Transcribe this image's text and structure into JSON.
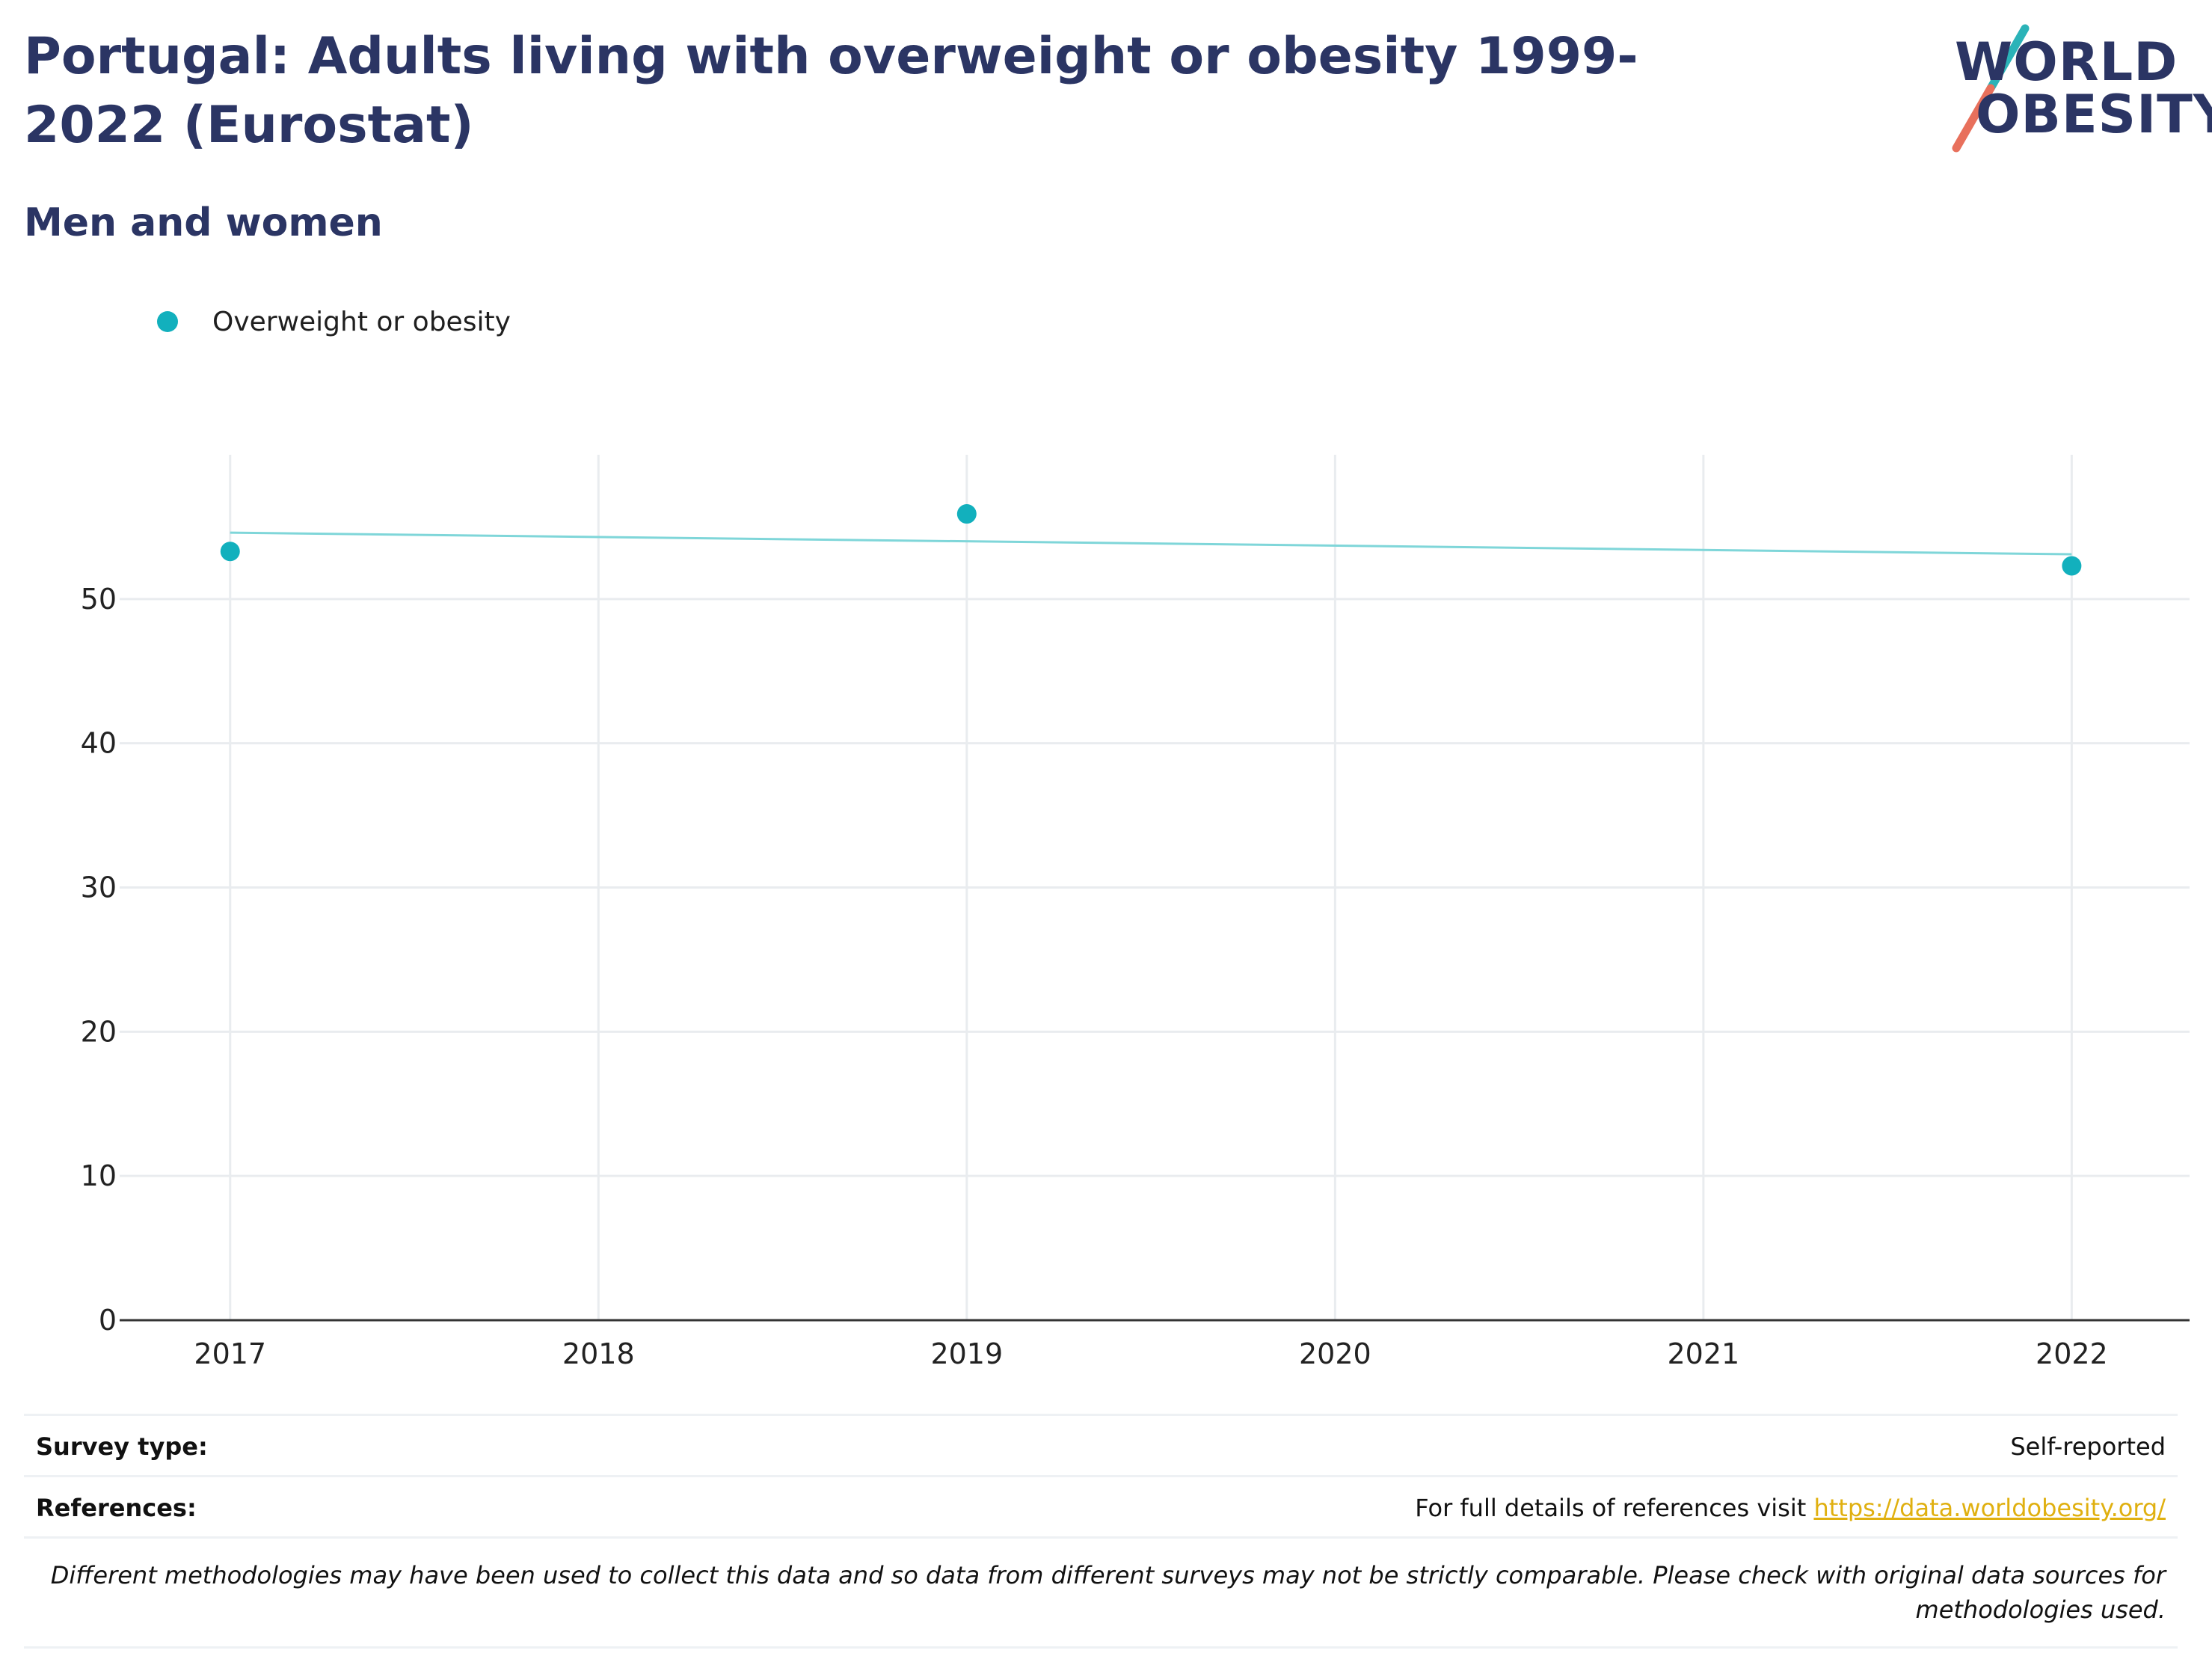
{
  "header": {
    "title": "Portugal: Adults living with overweight or obesity 1999-2022 (Eurostat)",
    "subtitle": "Men and women"
  },
  "logo": {
    "line1": "WORLD",
    "line2": "OBESITY",
    "accent_teal": "#2bb3b8",
    "accent_coral": "#e8705c"
  },
  "legend": {
    "items": [
      {
        "label": "Overweight or obesity",
        "color": "#12b0bd"
      }
    ]
  },
  "chart_data": {
    "type": "scatter",
    "title": "",
    "xlabel": "",
    "ylabel": "",
    "x_ticks": [
      "2017",
      "2018",
      "2019",
      "2020",
      "2021",
      "2022"
    ],
    "y_ticks": [
      "0",
      "10",
      "20",
      "30",
      "40",
      "50"
    ],
    "xlim": [
      2016.7,
      2022.32
    ],
    "ylim": [
      0,
      60
    ],
    "grid": true,
    "series": [
      {
        "name": "Overweight or obesity",
        "color": "#12b0bd",
        "x": [
          2017,
          2019,
          2022
        ],
        "y": [
          53.3,
          55.9,
          52.3
        ]
      }
    ],
    "trendline": {
      "color": "#7fd6d9",
      "x": [
        2017,
        2022
      ],
      "y": [
        54.6,
        53.1
      ]
    }
  },
  "footer": {
    "survey_type_label": "Survey type:",
    "survey_type_value": "Self-reported",
    "references_label": "References:",
    "references_text": "For full details of references visit ",
    "references_link": "https://data.worldobesity.org/",
    "disclaimer": "Different methodologies may have been used to collect this data and so data from different surveys may not be strictly comparable. Please check with original data sources for methodologies used."
  }
}
